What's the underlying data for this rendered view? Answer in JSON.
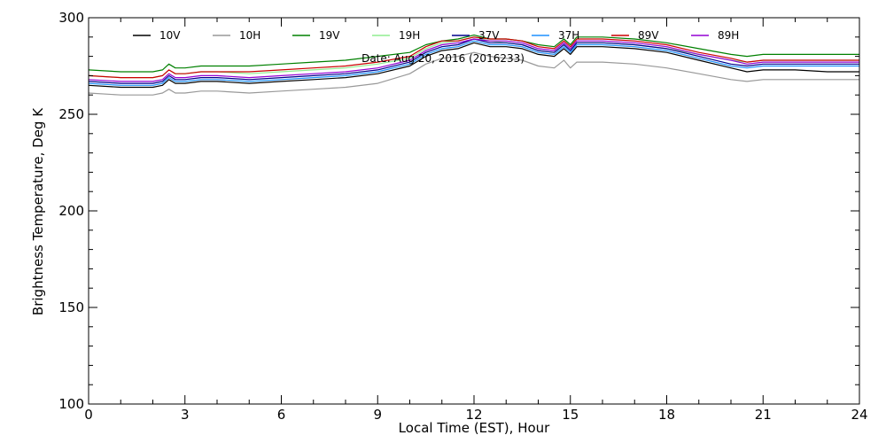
{
  "chart_data": {
    "type": "line",
    "title": "",
    "annotation": "Date: Aug 20, 2016 (2016233)",
    "xlabel": "Local Time (EST), Hour",
    "ylabel": "Brightness Temperature, Deg K",
    "xlim": [
      0,
      24
    ],
    "ylim": [
      100,
      300
    ],
    "xticks": [
      0,
      3,
      6,
      9,
      12,
      15,
      18,
      21,
      24
    ],
    "yticks": [
      100,
      150,
      200,
      250,
      300
    ],
    "grid": false,
    "legend_position": "top",
    "x": [
      0,
      1,
      2,
      2.3,
      2.5,
      2.7,
      3,
      3.5,
      4,
      5,
      6,
      7,
      8,
      9,
      10,
      10.5,
      11,
      11.5,
      12,
      12.5,
      13,
      13.5,
      14,
      14.5,
      14.8,
      15,
      15.2,
      15.5,
      16,
      17,
      18,
      19,
      20,
      20.5,
      21,
      22,
      23,
      24
    ],
    "series": [
      {
        "name": "10V",
        "color": "#000000",
        "values": [
          265,
          264,
          264,
          265,
          268,
          266,
          266,
          267,
          267,
          266,
          267,
          268,
          269,
          271,
          275,
          280,
          283,
          284,
          287,
          285,
          285,
          284,
          281,
          280,
          284,
          281,
          285,
          285,
          285,
          284,
          282,
          278,
          274,
          272,
          273,
          273,
          272,
          272
        ]
      },
      {
        "name": "10H",
        "color": "#999999",
        "values": [
          261,
          260,
          260,
          261,
          263,
          261,
          261,
          262,
          262,
          261,
          262,
          263,
          264,
          266,
          271,
          276,
          279,
          280,
          282,
          280,
          279,
          278,
          275,
          274,
          278,
          274,
          277,
          277,
          277,
          276,
          274,
          271,
          268,
          267,
          268,
          268,
          268,
          268
        ]
      },
      {
        "name": "19V",
        "color": "#008000",
        "values": [
          273,
          272,
          272,
          273,
          276,
          274,
          274,
          275,
          275,
          275,
          276,
          277,
          278,
          280,
          282,
          286,
          288,
          289,
          291,
          289,
          289,
          288,
          286,
          285,
          289,
          286,
          290,
          290,
          290,
          289,
          287,
          284,
          281,
          280,
          281,
          281,
          281,
          281
        ]
      },
      {
        "name": "19H",
        "color": "#90ee90",
        "values": [
          270,
          269,
          269,
          270,
          273,
          271,
          271,
          272,
          272,
          271,
          272,
          273,
          274,
          276,
          279,
          284,
          287,
          288,
          290,
          288,
          287,
          286,
          283,
          282,
          286,
          283,
          287,
          287,
          287,
          286,
          284,
          281,
          278,
          277,
          278,
          278,
          278,
          278
        ]
      },
      {
        "name": "37V",
        "color": "#00008b",
        "values": [
          267,
          266,
          266,
          267,
          270,
          268,
          268,
          269,
          269,
          268,
          269,
          270,
          271,
          273,
          277,
          282,
          285,
          286,
          289,
          287,
          287,
          286,
          283,
          282,
          286,
          283,
          287,
          287,
          287,
          286,
          284,
          280,
          276,
          275,
          276,
          276,
          276,
          276
        ]
      },
      {
        "name": "37H",
        "color": "#1e90ff",
        "values": [
          266,
          265,
          265,
          266,
          269,
          267,
          267,
          268,
          268,
          267,
          268,
          269,
          270,
          272,
          276,
          281,
          284,
          285,
          288,
          286,
          286,
          285,
          282,
          281,
          285,
          282,
          286,
          286,
          286,
          285,
          283,
          279,
          275,
          274,
          275,
          275,
          275,
          275
        ]
      },
      {
        "name": "89V",
        "color": "#cc0000",
        "values": [
          270,
          269,
          269,
          270,
          273,
          271,
          271,
          272,
          272,
          272,
          273,
          274,
          275,
          277,
          280,
          285,
          288,
          288,
          290,
          289,
          289,
          288,
          285,
          284,
          288,
          285,
          289,
          289,
          289,
          288,
          286,
          282,
          279,
          277,
          278,
          278,
          278,
          278
        ]
      },
      {
        "name": "89H",
        "color": "#9400d3",
        "values": [
          268,
          267,
          267,
          268,
          271,
          269,
          269,
          270,
          270,
          269,
          270,
          271,
          272,
          274,
          278,
          283,
          286,
          287,
          289,
          288,
          288,
          287,
          284,
          283,
          287,
          284,
          288,
          288,
          288,
          287,
          285,
          281,
          278,
          276,
          277,
          277,
          277,
          277
        ]
      }
    ]
  }
}
